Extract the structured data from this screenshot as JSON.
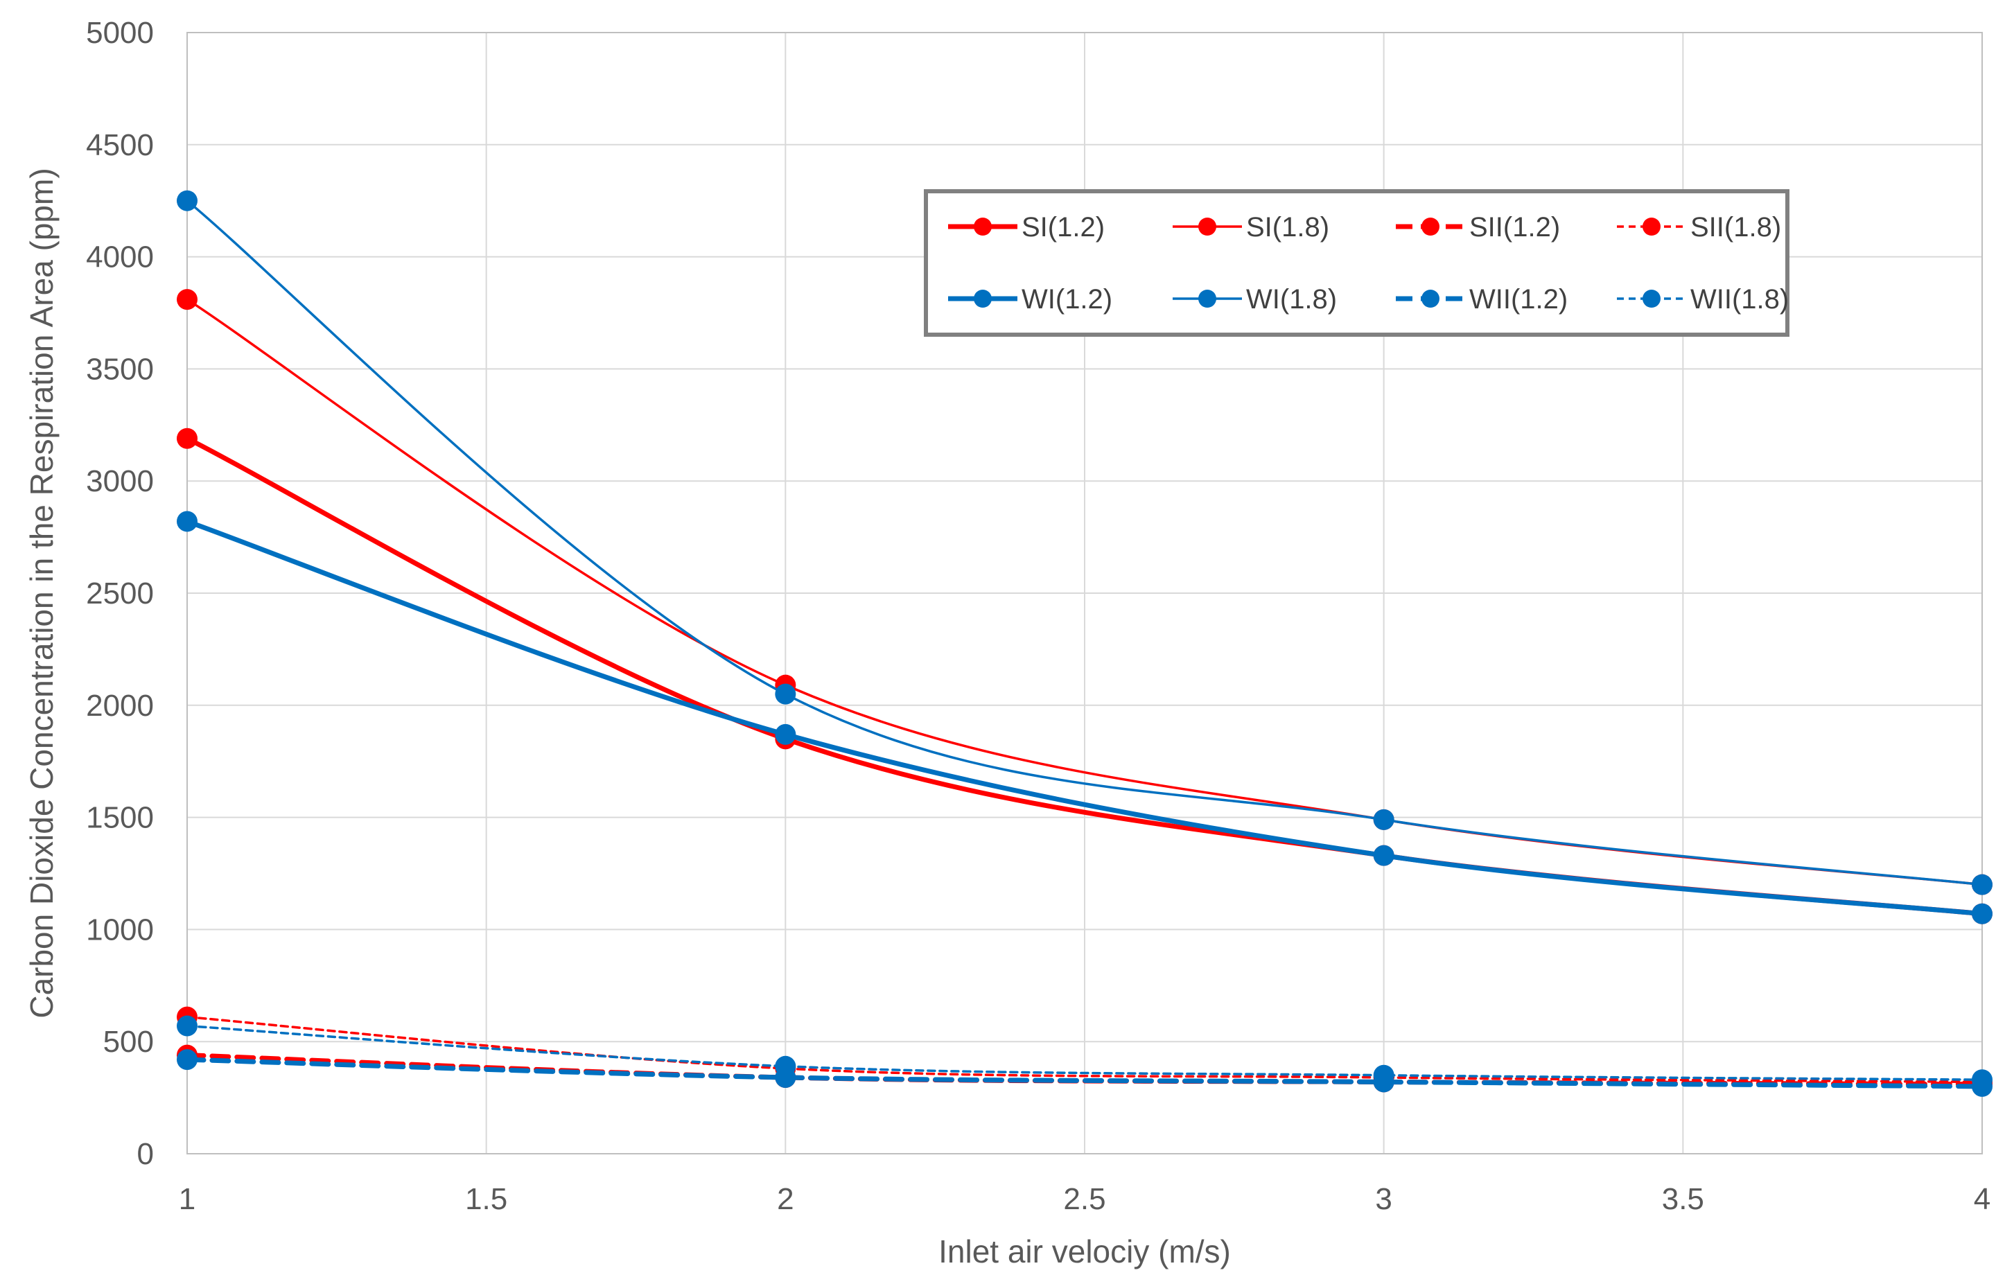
{
  "chart_data": {
    "type": "line",
    "title": "",
    "xlabel": "Inlet air velociy (m/s)",
    "ylabel": "Carbon Dioxide Concentration in the Respiration Area (ppm)",
    "xlim": [
      1,
      4
    ],
    "ylim": [
      0,
      5000
    ],
    "xticks": [
      "1",
      "1.5",
      "2",
      "2.5",
      "3",
      "3.5",
      "4"
    ],
    "yticks": [
      "0",
      "500",
      "1000",
      "1500",
      "2000",
      "2500",
      "3000",
      "3500",
      "4000",
      "4500",
      "5000"
    ],
    "grid": true,
    "legend_position": "top-right",
    "x": [
      1,
      2,
      3,
      4
    ],
    "series": [
      {
        "name": "SI(1.2)",
        "values": [
          3190,
          1850,
          1330,
          1070
        ],
        "color": "#ff0000",
        "style": "solid-thick"
      },
      {
        "name": "SI(1.8)",
        "values": [
          3810,
          2090,
          1490,
          1200
        ],
        "color": "#ff0000",
        "style": "solid-thin"
      },
      {
        "name": "SII(1.2)",
        "values": [
          440,
          340,
          320,
          310
        ],
        "color": "#ff0000",
        "style": "dashed-thick"
      },
      {
        "name": "SII(1.8)",
        "values": [
          610,
          380,
          340,
          320
        ],
        "color": "#ff0000",
        "style": "dashed-thin"
      },
      {
        "name": "WI(1.2)",
        "values": [
          2820,
          1870,
          1330,
          1070
        ],
        "color": "#0070c0",
        "style": "solid-thick"
      },
      {
        "name": "WI(1.8)",
        "values": [
          4250,
          2050,
          1490,
          1200
        ],
        "color": "#0070c0",
        "style": "solid-thin"
      },
      {
        "name": "WII(1.2)",
        "values": [
          420,
          340,
          320,
          300
        ],
        "color": "#0070c0",
        "style": "dashed-thick"
      },
      {
        "name": "WII(1.8)",
        "values": [
          570,
          390,
          350,
          330
        ],
        "color": "#0070c0",
        "style": "dashed-thin"
      }
    ]
  }
}
